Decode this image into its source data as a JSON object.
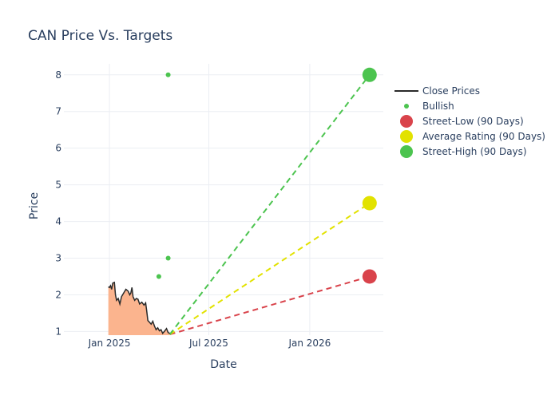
{
  "chart_data": {
    "type": "line",
    "title": "CAN Price Vs. Targets",
    "xlabel": "Date",
    "ylabel": "Price",
    "x_range": [
      "2024-10-10",
      "2026-05-15"
    ],
    "y_range": [
      0.9,
      8.3
    ],
    "x_ticks": [
      {
        "date": "2025-01-01",
        "label": "Jan 2025"
      },
      {
        "date": "2025-07-01",
        "label": "Jul 2025"
      },
      {
        "date": "2026-01-01",
        "label": "Jan 2026"
      }
    ],
    "y_ticks": [
      1,
      2,
      3,
      4,
      5,
      6,
      7,
      8
    ],
    "grid": true,
    "legend_position": "right",
    "colors": {
      "close": "#2a2a2a",
      "fill": "#fbb48e",
      "bullish": "#4cc44f",
      "low": "#d9434b",
      "avg": "#e2e200",
      "high": "#4cc44f"
    },
    "legend": [
      {
        "name": "Close Prices",
        "kind": "line"
      },
      {
        "name": "Bullish",
        "kind": "small-dot"
      },
      {
        "name": "Street-Low (90 Days)",
        "kind": "big-dot"
      },
      {
        "name": "Average Rating (90 Days)",
        "kind": "big-dot"
      },
      {
        "name": "Street-High (90 Days)",
        "kind": "big-dot"
      }
    ],
    "close_prices": [
      {
        "date": "2024-12-30",
        "value": 2.22
      },
      {
        "date": "2025-01-01",
        "value": 2.2
      },
      {
        "date": "2025-01-03",
        "value": 2.25
      },
      {
        "date": "2025-01-05",
        "value": 2.15
      },
      {
        "date": "2025-01-07",
        "value": 2.32
      },
      {
        "date": "2025-01-10",
        "value": 2.34
      },
      {
        "date": "2025-01-12",
        "value": 2.0
      },
      {
        "date": "2025-01-14",
        "value": 1.85
      },
      {
        "date": "2025-01-17",
        "value": 1.9
      },
      {
        "date": "2025-01-20",
        "value": 1.75
      },
      {
        "date": "2025-01-23",
        "value": 1.95
      },
      {
        "date": "2025-01-27",
        "value": 2.05
      },
      {
        "date": "2025-01-31",
        "value": 2.15
      },
      {
        "date": "2025-02-04",
        "value": 2.1
      },
      {
        "date": "2025-02-07",
        "value": 2.0
      },
      {
        "date": "2025-02-09",
        "value": 2.05
      },
      {
        "date": "2025-02-11",
        "value": 2.2
      },
      {
        "date": "2025-02-13",
        "value": 1.95
      },
      {
        "date": "2025-02-16",
        "value": 1.85
      },
      {
        "date": "2025-02-19",
        "value": 1.9
      },
      {
        "date": "2025-02-22",
        "value": 1.88
      },
      {
        "date": "2025-02-25",
        "value": 1.75
      },
      {
        "date": "2025-03-01",
        "value": 1.8
      },
      {
        "date": "2025-03-05",
        "value": 1.72
      },
      {
        "date": "2025-03-08",
        "value": 1.78
      },
      {
        "date": "2025-03-10",
        "value": 1.55
      },
      {
        "date": "2025-03-12",
        "value": 1.3
      },
      {
        "date": "2025-03-15",
        "value": 1.25
      },
      {
        "date": "2025-03-18",
        "value": 1.2
      },
      {
        "date": "2025-03-21",
        "value": 1.28
      },
      {
        "date": "2025-03-24",
        "value": 1.15
      },
      {
        "date": "2025-03-27",
        "value": 1.05
      },
      {
        "date": "2025-03-30",
        "value": 1.1
      },
      {
        "date": "2025-04-02",
        "value": 1.02
      },
      {
        "date": "2025-04-05",
        "value": 1.05
      },
      {
        "date": "2025-04-08",
        "value": 0.95
      },
      {
        "date": "2025-04-12",
        "value": 1.02
      },
      {
        "date": "2025-04-15",
        "value": 1.08
      },
      {
        "date": "2025-04-18",
        "value": 0.97
      },
      {
        "date": "2025-04-21",
        "value": 0.95
      }
    ],
    "bullish": [
      {
        "date": "2025-04-01",
        "value": 2.5
      },
      {
        "date": "2025-04-18",
        "value": 3.0
      },
      {
        "date": "2025-04-18",
        "value": 8.0
      }
    ],
    "targets": {
      "start": {
        "date": "2025-04-21",
        "value": 0.92
      },
      "end_date": "2026-04-20",
      "low": 2.5,
      "average": 4.5,
      "high": 8.0
    }
  }
}
